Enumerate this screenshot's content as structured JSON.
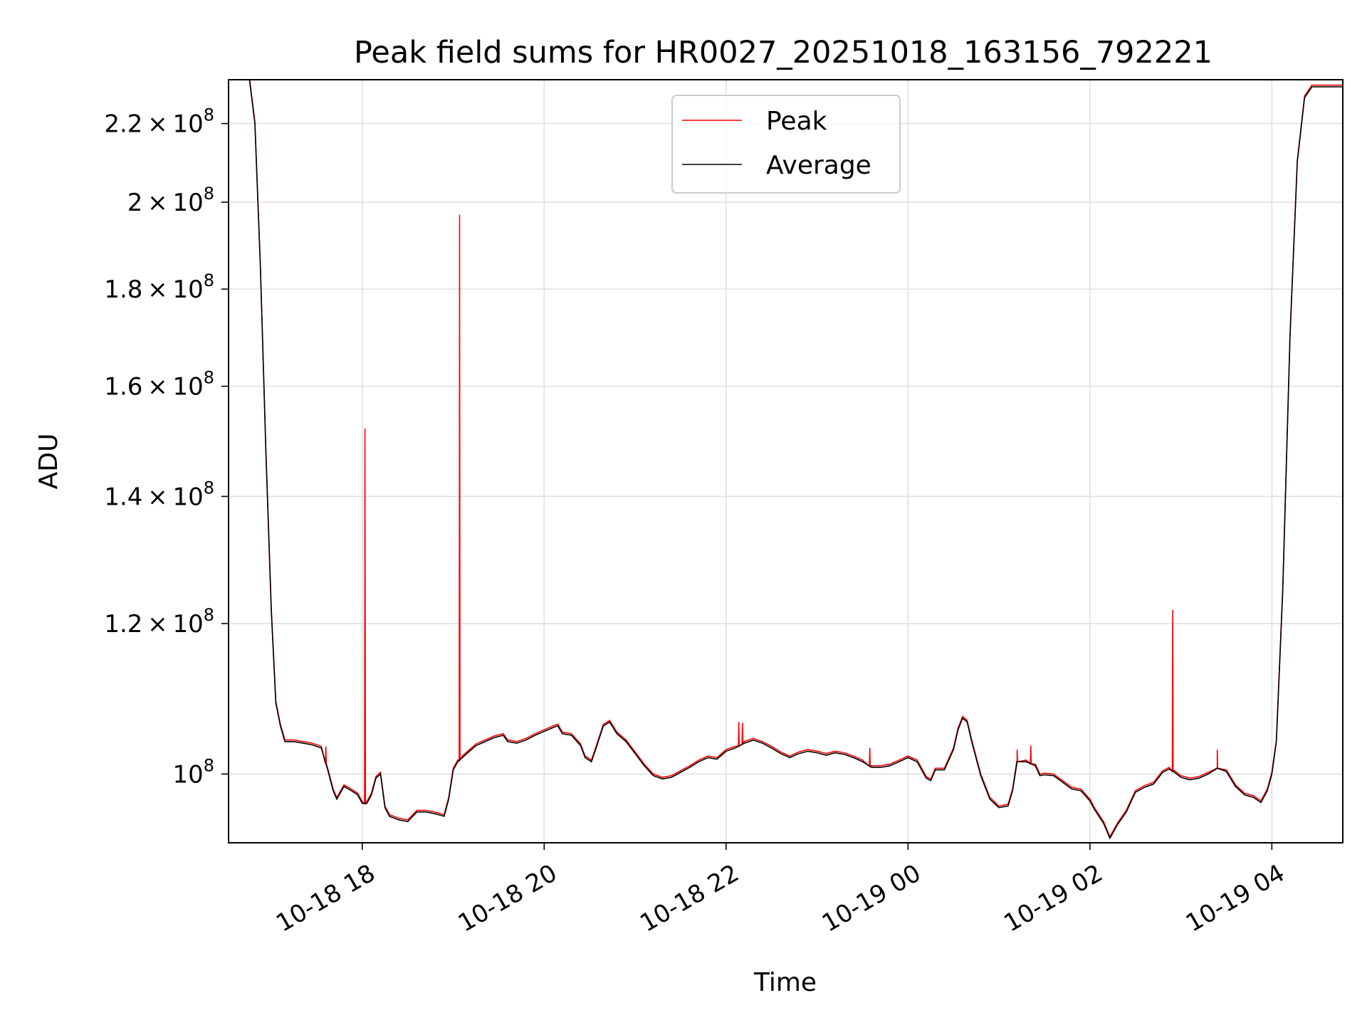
{
  "chart_data": {
    "type": "line",
    "title": "Peak field sums for HR0027_20251018_163156_792221",
    "xlabel": "Time",
    "ylabel": "ADU",
    "yscale": "log",
    "ylim": [
      92000000,
      232000000
    ],
    "x_unit": "hours since 2025-10-18 00:00",
    "xlim": [
      16.53,
      28.78
    ],
    "grid": true,
    "legend": {
      "location": "upper center",
      "entries": [
        {
          "name": "Peak",
          "color": "#ff0000"
        },
        {
          "name": "Average",
          "color": "#000000"
        }
      ]
    },
    "x_ticks": [
      {
        "value": 18,
        "label": "10-18 18"
      },
      {
        "value": 20,
        "label": "10-18 20"
      },
      {
        "value": 22,
        "label": "10-18 22"
      },
      {
        "value": 24,
        "label": "10-19 00"
      },
      {
        "value": 26,
        "label": "10-19 02"
      },
      {
        "value": 28,
        "label": "10-19 04"
      }
    ],
    "y_ticks": [
      {
        "value": 100000000,
        "mantissa": "",
        "exp": "8"
      },
      {
        "value": 120000000,
        "mantissa": "1.2",
        "exp": "8"
      },
      {
        "value": 140000000,
        "mantissa": "1.4",
        "exp": "8"
      },
      {
        "value": 160000000,
        "mantissa": "1.6",
        "exp": "8"
      },
      {
        "value": 180000000,
        "mantissa": "1.8",
        "exp": "8"
      },
      {
        "value": 200000000,
        "mantissa": "2",
        "exp": "8"
      },
      {
        "value": 220000000,
        "mantissa": "2.2",
        "exp": "8"
      }
    ],
    "series": [
      {
        "name": "Average",
        "color": "#000000",
        "points": [
          [
            16.76,
            232000000
          ],
          [
            16.82,
            220000000
          ],
          [
            16.88,
            185000000
          ],
          [
            16.94,
            148000000
          ],
          [
            17.0,
            122000000
          ],
          [
            17.05,
            109000000
          ],
          [
            17.1,
            106000000
          ],
          [
            17.15,
            104000000
          ],
          [
            17.25,
            104000000
          ],
          [
            17.35,
            103800000
          ],
          [
            17.45,
            103600000
          ],
          [
            17.55,
            103200000
          ],
          [
            17.62,
            100500000
          ],
          [
            17.68,
            98000000
          ],
          [
            17.72,
            97000000
          ],
          [
            17.8,
            98500000
          ],
          [
            17.88,
            98000000
          ],
          [
            17.95,
            97500000
          ],
          [
            18.0,
            96500000
          ],
          [
            18.05,
            96500000
          ],
          [
            18.1,
            97500000
          ],
          [
            18.15,
            99500000
          ],
          [
            18.2,
            100000000
          ],
          [
            18.25,
            96000000
          ],
          [
            18.3,
            95000000
          ],
          [
            18.4,
            94600000
          ],
          [
            18.5,
            94400000
          ],
          [
            18.6,
            95500000
          ],
          [
            18.7,
            95500000
          ],
          [
            18.8,
            95300000
          ],
          [
            18.9,
            95000000
          ],
          [
            18.95,
            97000000
          ],
          [
            19.0,
            100500000
          ],
          [
            19.05,
            101500000
          ],
          [
            19.1,
            102000000
          ],
          [
            19.15,
            102500000
          ],
          [
            19.25,
            103500000
          ],
          [
            19.35,
            104000000
          ],
          [
            19.45,
            104500000
          ],
          [
            19.55,
            104800000
          ],
          [
            19.6,
            104000000
          ],
          [
            19.7,
            103800000
          ],
          [
            19.8,
            104200000
          ],
          [
            19.9,
            104800000
          ],
          [
            20.0,
            105300000
          ],
          [
            20.1,
            105800000
          ],
          [
            20.15,
            106000000
          ],
          [
            20.2,
            105000000
          ],
          [
            20.3,
            104800000
          ],
          [
            20.4,
            103500000
          ],
          [
            20.45,
            102000000
          ],
          [
            20.52,
            101500000
          ],
          [
            20.58,
            103500000
          ],
          [
            20.65,
            106000000
          ],
          [
            20.72,
            106500000
          ],
          [
            20.8,
            105000000
          ],
          [
            20.9,
            104000000
          ],
          [
            21.0,
            102500000
          ],
          [
            21.1,
            101000000
          ],
          [
            21.2,
            99800000
          ],
          [
            21.3,
            99400000
          ],
          [
            21.4,
            99600000
          ],
          [
            21.5,
            100200000
          ],
          [
            21.6,
            100800000
          ],
          [
            21.7,
            101500000
          ],
          [
            21.8,
            102000000
          ],
          [
            21.9,
            101800000
          ],
          [
            22.0,
            102800000
          ],
          [
            22.1,
            103200000
          ],
          [
            22.2,
            103800000
          ],
          [
            22.3,
            104200000
          ],
          [
            22.4,
            103800000
          ],
          [
            22.5,
            103200000
          ],
          [
            22.6,
            102500000
          ],
          [
            22.7,
            102000000
          ],
          [
            22.8,
            102500000
          ],
          [
            22.9,
            102800000
          ],
          [
            23.0,
            102600000
          ],
          [
            23.1,
            102300000
          ],
          [
            23.2,
            102600000
          ],
          [
            23.3,
            102400000
          ],
          [
            23.4,
            102000000
          ],
          [
            23.5,
            101500000
          ],
          [
            23.6,
            100800000
          ],
          [
            23.7,
            100800000
          ],
          [
            23.8,
            101000000
          ],
          [
            23.9,
            101500000
          ],
          [
            24.0,
            102000000
          ],
          [
            24.1,
            101500000
          ],
          [
            24.2,
            99500000
          ],
          [
            24.25,
            99200000
          ],
          [
            24.3,
            100500000
          ],
          [
            24.4,
            100500000
          ],
          [
            24.5,
            103000000
          ],
          [
            24.55,
            105500000
          ],
          [
            24.6,
            107000000
          ],
          [
            24.65,
            106500000
          ],
          [
            24.7,
            104000000
          ],
          [
            24.8,
            99800000
          ],
          [
            24.9,
            97000000
          ],
          [
            25.0,
            96000000
          ],
          [
            25.1,
            96200000
          ],
          [
            25.15,
            98000000
          ],
          [
            25.2,
            101500000
          ],
          [
            25.3,
            101500000
          ],
          [
            25.4,
            101000000
          ],
          [
            25.45,
            99800000
          ],
          [
            25.5,
            99900000
          ],
          [
            25.6,
            99800000
          ],
          [
            25.7,
            99000000
          ],
          [
            25.8,
            98200000
          ],
          [
            25.9,
            98000000
          ],
          [
            26.0,
            96800000
          ],
          [
            26.05,
            95800000
          ],
          [
            26.15,
            94200000
          ],
          [
            26.22,
            92500000
          ],
          [
            26.3,
            94000000
          ],
          [
            26.4,
            95500000
          ],
          [
            26.5,
            97800000
          ],
          [
            26.6,
            98400000
          ],
          [
            26.7,
            98800000
          ],
          [
            26.75,
            99500000
          ],
          [
            26.8,
            100200000
          ],
          [
            26.87,
            100600000
          ],
          [
            26.93,
            100200000
          ],
          [
            27.0,
            99600000
          ],
          [
            27.1,
            99300000
          ],
          [
            27.2,
            99500000
          ],
          [
            27.3,
            100000000
          ],
          [
            27.4,
            100700000
          ],
          [
            27.5,
            100300000
          ],
          [
            27.6,
            98500000
          ],
          [
            27.7,
            97500000
          ],
          [
            27.8,
            97200000
          ],
          [
            27.88,
            96600000
          ],
          [
            27.95,
            98000000
          ],
          [
            28.0,
            100000000
          ],
          [
            28.05,
            104000000
          ],
          [
            28.12,
            125000000
          ],
          [
            28.2,
            170000000
          ],
          [
            28.28,
            210000000
          ],
          [
            28.36,
            227000000
          ],
          [
            28.44,
            230000000
          ],
          [
            28.78,
            230000000
          ]
        ]
      },
      {
        "name": "Peak",
        "color": "#ff0000",
        "spikes": [
          [
            18.03,
            152000000
          ],
          [
            19.07,
            197000000
          ],
          [
            22.14,
            106500000
          ],
          [
            22.18,
            106400000
          ],
          [
            23.58,
            103200000
          ],
          [
            26.91,
            122000000
          ],
          [
            27.4,
            103000000
          ],
          [
            25.2,
            103000000
          ],
          [
            25.35,
            103500000
          ],
          [
            17.6,
            103400000
          ]
        ]
      }
    ]
  }
}
